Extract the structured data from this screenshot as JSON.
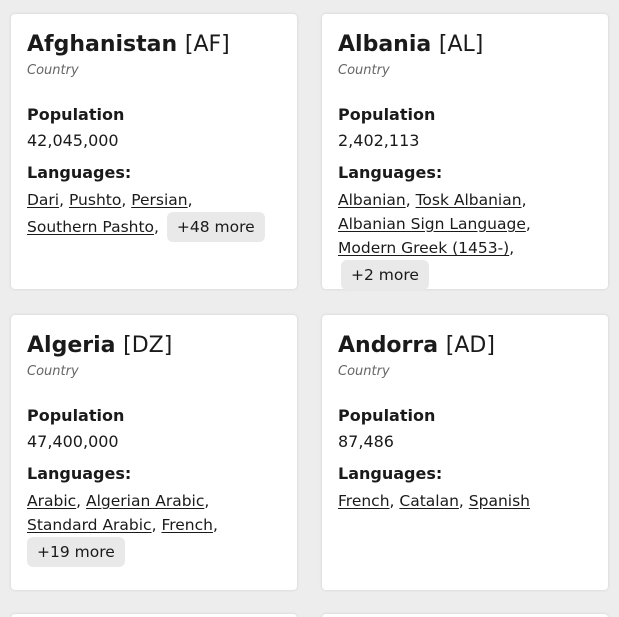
{
  "cards": [
    {
      "name": "Afghanistan",
      "code": "[AF]",
      "type": "Country",
      "population_label": "Population",
      "population": "42,045,000",
      "languages_label": "Languages:",
      "languages": [
        "Dari",
        "Pushto",
        "Persian",
        "Southern Pashto"
      ],
      "more": "+48 more"
    },
    {
      "name": "Albania",
      "code": "[AL]",
      "type": "Country",
      "population_label": "Population",
      "population": "2,402,113",
      "languages_label": "Languages:",
      "languages": [
        "Albanian",
        "Tosk Albanian",
        "Albanian Sign Language",
        "Modern Greek (1453-)"
      ],
      "more": "+2 more"
    },
    {
      "name": "Algeria",
      "code": "[DZ]",
      "type": "Country",
      "population_label": "Population",
      "population": "47,400,000",
      "languages_label": "Languages:",
      "languages": [
        "Arabic",
        "Algerian Arabic",
        "Standard Arabic",
        "French"
      ],
      "more": "+19 more"
    },
    {
      "name": "Andorra",
      "code": "[AD]",
      "type": "Country",
      "population_label": "Population",
      "population": "87,486",
      "languages_label": "Languages:",
      "languages": [
        "French",
        "Catalan",
        "Spanish"
      ],
      "more": ""
    }
  ]
}
